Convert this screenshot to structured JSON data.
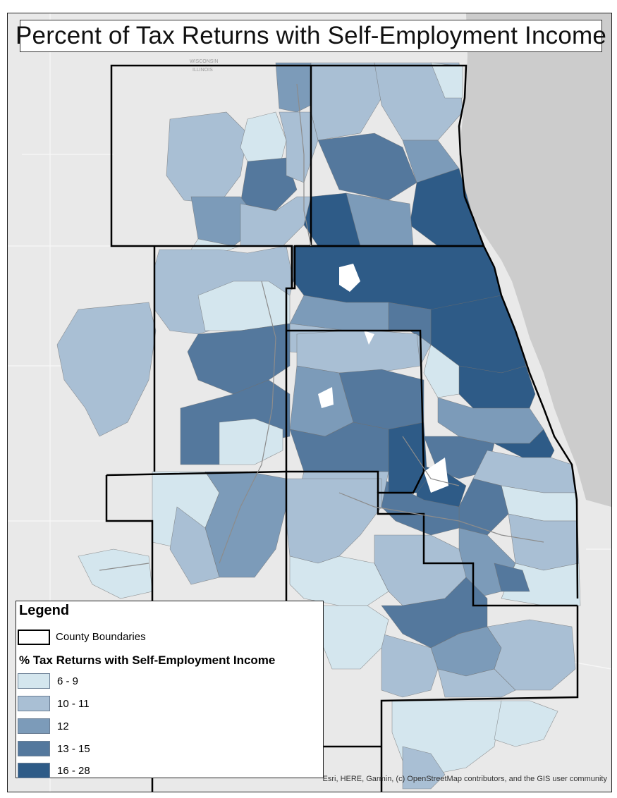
{
  "title": "Percent of Tax Returns with Self-Employment Income",
  "basemap": {
    "state_labels": [
      "WISCONSIN",
      "ILLINOIS"
    ],
    "water_color": "#cccccc",
    "land_color": "#e9e9e9"
  },
  "legend": {
    "heading": "Legend",
    "county_label": "County Boundaries",
    "subheading": "% Tax Returns with Self-Employment Income",
    "classes": [
      {
        "label": "6 - 9",
        "color": "#d4e6ee"
      },
      {
        "label": "10 - 11",
        "color": "#a9bfd4"
      },
      {
        "label": "12",
        "color": "#7c9bb9"
      },
      {
        "label": "13 - 15",
        "color": "#54789d"
      },
      {
        "label": "16 - 28",
        "color": "#2e5b87"
      }
    ]
  },
  "attribution": "Esri, HERE, Garmin, (c) OpenStreetMap contributors, and the GIS user community"
}
